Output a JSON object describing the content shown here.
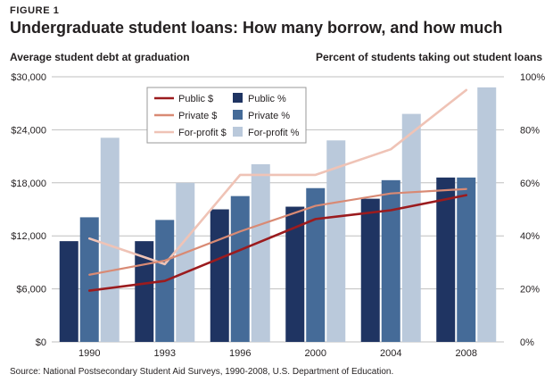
{
  "figure_label": "FIGURE 1",
  "title": "Undergraduate student loans: How many borrow, and how much",
  "left_axis_label": "Average student debt at graduation",
  "right_axis_label": "Percent of students taking out student loans",
  "source": "Source: National Postsecondary Student Aid Surveys, 1990-2008, U.S. Department of Education.",
  "colors": {
    "public_pct": "#1f3462",
    "private_pct": "#456b98",
    "forprofit_pct": "#bac9db",
    "public_dollar": "#9b1b1e",
    "private_dollar": "#d98a74",
    "forprofit_dollar": "#efc3b6",
    "grid": "#bfbfbf"
  },
  "chart_data": {
    "type": "bar",
    "categories": [
      "1990",
      "1993",
      "1996",
      "2000",
      "2004",
      "2008"
    ],
    "bar_series": [
      {
        "name": "Public %",
        "axis": "right",
        "values": [
          38,
          38,
          50,
          51,
          54,
          62
        ]
      },
      {
        "name": "Private %",
        "axis": "right",
        "values": [
          47,
          46,
          55,
          58,
          61,
          62
        ]
      },
      {
        "name": "For-profit %",
        "axis": "right",
        "values": [
          77,
          60,
          67,
          76,
          86,
          96
        ]
      }
    ],
    "line_series": [
      {
        "name": "Public $",
        "axis": "left",
        "values": [
          5800,
          6900,
          10400,
          13900,
          14900,
          16600
        ]
      },
      {
        "name": "Private $",
        "axis": "left",
        "values": [
          7600,
          9200,
          12500,
          15400,
          16800,
          17300
        ]
      },
      {
        "name": "For-profit $",
        "axis": "left",
        "values": [
          11700,
          8800,
          18900,
          18900,
          21800,
          28500
        ]
      }
    ],
    "left_axis": {
      "min": 0,
      "max": 30000,
      "ticks": [
        "$0",
        "$6,000",
        "$12,000",
        "$18,000",
        "$24,000",
        "$30,000"
      ],
      "tick_values": [
        0,
        6000,
        12000,
        18000,
        24000,
        30000
      ]
    },
    "right_axis": {
      "min": 0,
      "max": 100,
      "ticks": [
        "0%",
        "20%",
        "40%",
        "60%",
        "80%",
        "100%"
      ],
      "tick_values": [
        0,
        20,
        40,
        60,
        80,
        100
      ]
    },
    "grid": true,
    "legend_position": "top-center",
    "legend": [
      {
        "label": "Public $",
        "kind": "line",
        "color_key": "public_dollar"
      },
      {
        "label": "Public %",
        "kind": "box",
        "color_key": "public_pct"
      },
      {
        "label": "Private $",
        "kind": "line",
        "color_key": "private_dollar"
      },
      {
        "label": "Private %",
        "kind": "box",
        "color_key": "private_pct"
      },
      {
        "label": "For-profit $",
        "kind": "line",
        "color_key": "forprofit_dollar"
      },
      {
        "label": "For-profit %",
        "kind": "box",
        "color_key": "forprofit_pct"
      }
    ]
  }
}
